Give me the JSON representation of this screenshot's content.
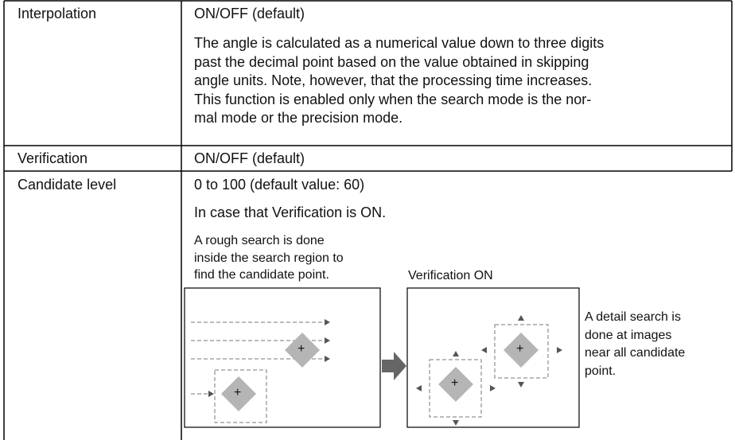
{
  "table": {
    "rows": [
      {
        "label": "Interpolation",
        "value": "ON/OFF (default)",
        "description": [
          "The angle is calculated as a numerical value down to three digits",
          "past the decimal point based on the value obtained in skipping",
          "angle units. Note, however, that the processing time increases.",
          "This function is enabled only when the search mode is the nor-",
          "mal mode or the precision mode."
        ]
      },
      {
        "label": "Verification",
        "value": "ON/OFF (default)"
      },
      {
        "label": "Candidate level",
        "value": "0 to 100 (default value: 60)",
        "note": "In case that Verification is ON."
      }
    ]
  },
  "figure": {
    "left_caption": [
      "A rough search is done",
      "inside the search region to",
      "find the candidate point."
    ],
    "middle_caption": "Verification ON",
    "right_caption": [
      "A detail search is",
      "done at images",
      "near all candidate",
      "point."
    ],
    "marker": "+"
  }
}
